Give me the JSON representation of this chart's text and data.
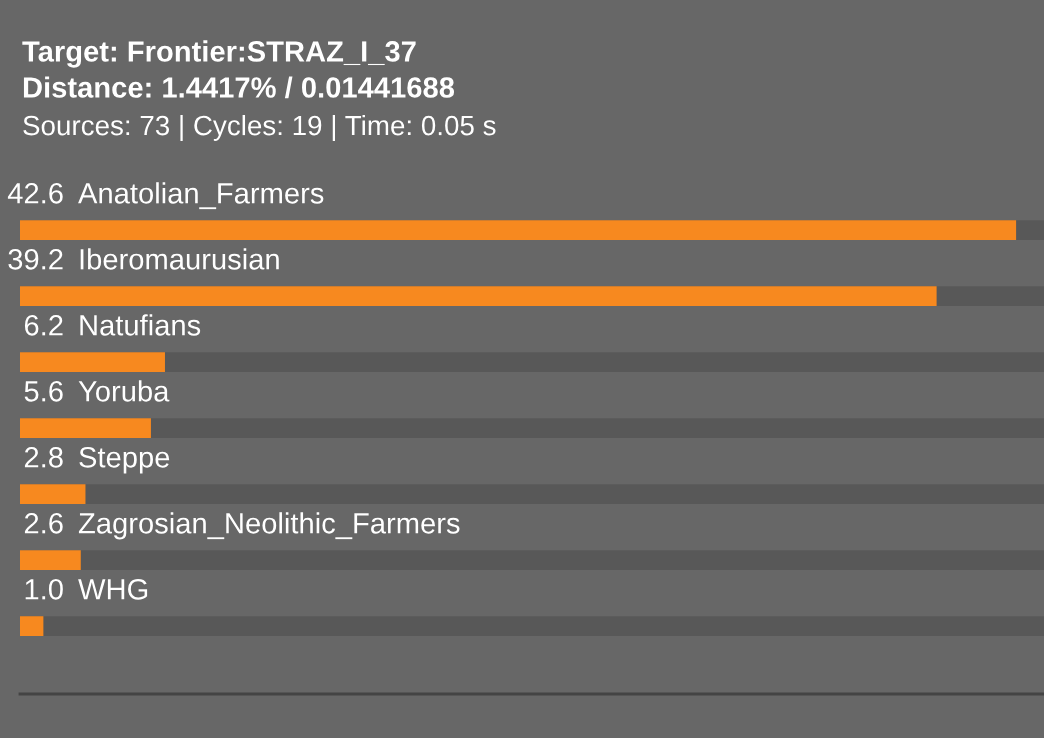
{
  "chart_data": {
    "type": "bar",
    "orientation": "horizontal",
    "title": "Target: Frontier:STRAZ_I_37\nDistance: 1.4417% / 0.01441688",
    "subtitle": "Sources: 73 | Cycles: 19 | Time: 0.05 s",
    "categories": [
      "Anatolian_Farmers",
      "Iberomaurusian",
      "Natufians",
      "Yoruba",
      "Steppe",
      "Zagrosian_Neolithic_Farmers",
      "WHG"
    ],
    "values": [
      42.6,
      39.2,
      6.2,
      5.6,
      2.8,
      2.6,
      1.0
    ],
    "color": "#f7891f",
    "value_labels": [
      "42.6",
      "39.2",
      "6.2",
      "5.6",
      "2.8",
      "2.6",
      "1.0"
    ]
  }
}
